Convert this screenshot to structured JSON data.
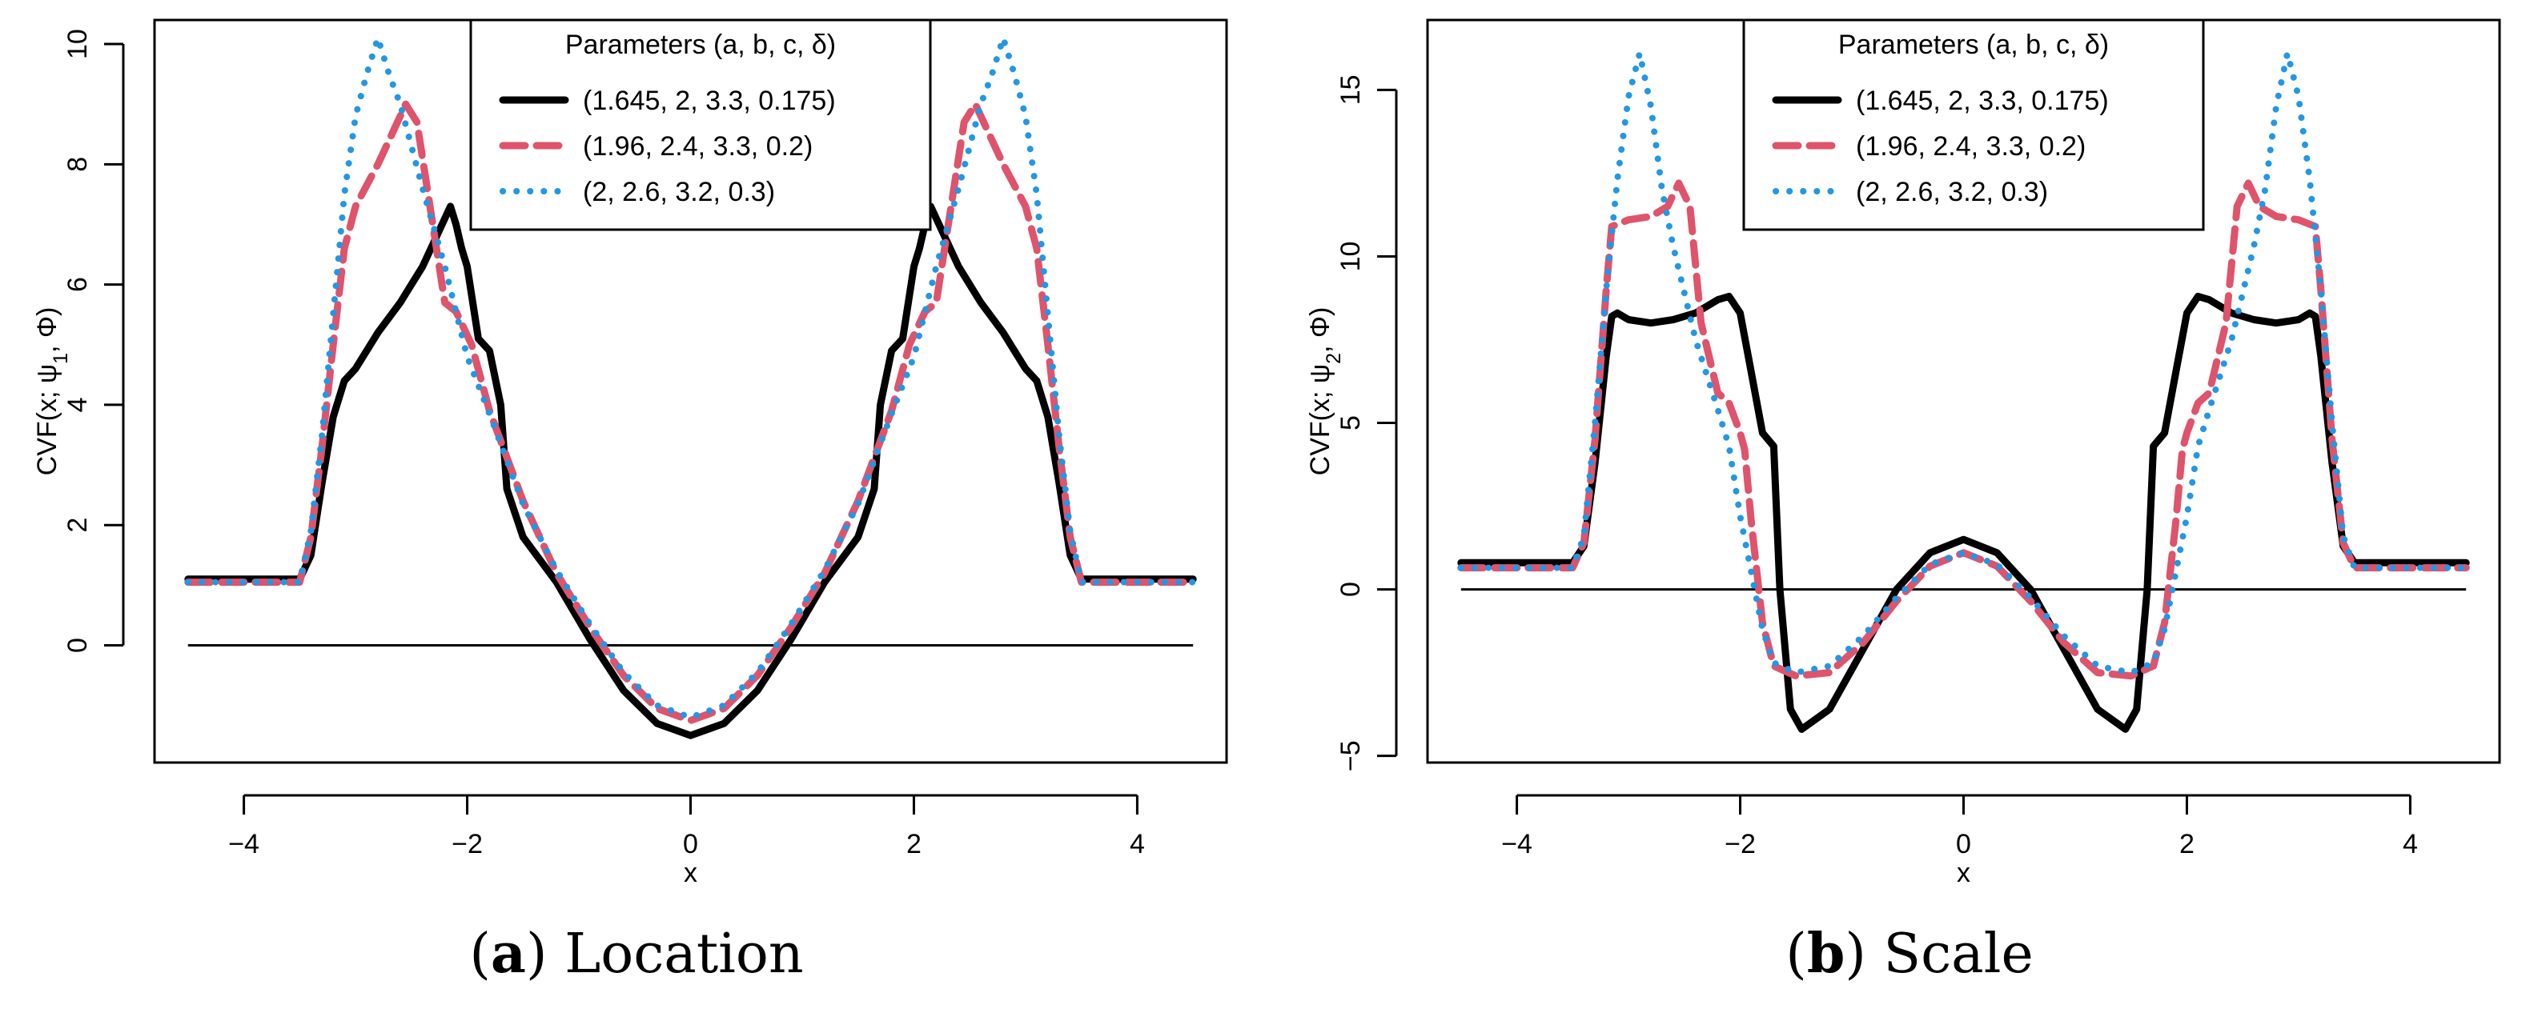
{
  "colors": {
    "black": "#000000",
    "red": "#DF536B",
    "blue": "#2297E6"
  },
  "chart_data": [
    {
      "type": "line",
      "panel_letter": "a",
      "caption_text": "Location",
      "xlabel": "x",
      "ylabel": "CVF(x; ψ1, Φ)",
      "ylabel_parts": {
        "pre": "CVF(x; ψ",
        "sub": "1",
        "post": ", Φ)"
      },
      "xlim": [
        -4.8,
        4.8
      ],
      "ylim": [
        -1.95,
        10.4
      ],
      "xticks": [
        -4,
        -2,
        0,
        2,
        4
      ],
      "xtick_labels": [
        "−4",
        "−2",
        "0",
        "2",
        "4"
      ],
      "yticks": [
        0,
        2,
        4,
        6,
        8,
        10
      ],
      "ytick_labels": [
        "0",
        "2",
        "4",
        "6",
        "8",
        "10"
      ],
      "legend": {
        "title": "Parameters (a, b, c, δ)",
        "placement": "top-center",
        "entries": [
          "(1.645, 2, 3.3, 0.175)",
          "(1.96, 2.4, 3.3, 0.2)",
          "(2, 2.6, 3.2, 0.3)"
        ]
      },
      "reference_line": 0,
      "series": [
        {
          "name": "(1.645, 2, 3.3, 0.175)",
          "color": "black",
          "style": "solid",
          "x": [
            0,
            0.3,
            0.6,
            0.9,
            1.2,
            1.5,
            1.645,
            1.7,
            1.8,
            1.9,
            2.0,
            2.05,
            2.1,
            2.15,
            2.2,
            2.4,
            2.6,
            2.8,
            3.0,
            3.1,
            3.2,
            3.3,
            3.4,
            3.5,
            4.5
          ],
          "y": [
            -1.5,
            -1.3,
            -0.75,
            0.1,
            1.05,
            1.8,
            2.6,
            4.0,
            4.9,
            5.1,
            6.3,
            6.6,
            7.0,
            7.3,
            7.1,
            6.3,
            5.7,
            5.2,
            4.6,
            4.4,
            3.8,
            2.7,
            1.5,
            1.1,
            1.1
          ]
        },
        {
          "name": "(1.96, 2.4, 3.3, 0.2)",
          "color": "red",
          "style": "dashed",
          "x": [
            0,
            0.3,
            0.6,
            0.9,
            1.2,
            1.5,
            1.8,
            1.96,
            2.1,
            2.2,
            2.3,
            2.45,
            2.55,
            2.65,
            2.8,
            3.0,
            3.1,
            3.2,
            3.3,
            3.4,
            3.5,
            4.5
          ],
          "y": [
            -1.25,
            -1.05,
            -0.5,
            0.3,
            1.2,
            2.4,
            3.9,
            5.0,
            5.55,
            5.7,
            6.9,
            8.7,
            9.0,
            8.6,
            8.0,
            7.3,
            6.6,
            5.0,
            3.3,
            1.8,
            1.05,
            1.05
          ]
        },
        {
          "name": "(2, 2.6, 3.2, 0.3)",
          "color": "blue",
          "style": "dotted",
          "x": [
            0,
            0.3,
            0.6,
            0.9,
            1.2,
            1.5,
            1.8,
            2.0,
            2.2,
            2.4,
            2.6,
            2.7,
            2.8,
            2.9,
            3.0,
            3.1,
            3.2,
            3.3,
            3.4,
            3.5,
            4.5
          ],
          "y": [
            -1.2,
            -1.0,
            -0.45,
            0.35,
            1.25,
            2.35,
            3.85,
            4.8,
            6.3,
            7.6,
            9.0,
            9.5,
            10.1,
            9.5,
            8.8,
            7.5,
            5.5,
            3.5,
            1.9,
            1.05,
            1.05
          ]
        }
      ]
    },
    {
      "type": "line",
      "panel_letter": "b",
      "caption_text": "Scale",
      "xlabel": "x",
      "ylabel": "CVF(x; ψ2, Φ)",
      "ylabel_parts": {
        "pre": "CVF(x; ψ",
        "sub": "2",
        "post": ", Φ)"
      },
      "xlim": [
        -4.8,
        4.8
      ],
      "ylim": [
        -5.2,
        17.1
      ],
      "xticks": [
        -4,
        -2,
        0,
        2,
        4
      ],
      "xtick_labels": [
        "−4",
        "−2",
        "0",
        "2",
        "4"
      ],
      "yticks": [
        -5,
        0,
        5,
        10,
        15
      ],
      "ytick_labels": [
        "−5",
        "0",
        "5",
        "10",
        "15"
      ],
      "legend": {
        "title": "Parameters (a, b, c, δ)",
        "placement": "top-center",
        "entries": [
          "(1.645, 2, 3.3, 0.175)",
          "(1.96, 2.4, 3.3, 0.2)",
          "(2, 2.6, 3.2, 0.3)"
        ]
      },
      "reference_line": 0,
      "series": [
        {
          "name": "(1.645, 2, 3.3, 0.175)",
          "color": "black",
          "style": "solid",
          "x": [
            0,
            0.3,
            0.6,
            0.9,
            1.2,
            1.45,
            1.55,
            1.645,
            1.7,
            1.8,
            1.9,
            2.0,
            2.1,
            2.2,
            2.4,
            2.6,
            2.8,
            3.0,
            3.1,
            3.15,
            3.2,
            3.3,
            3.4,
            3.5,
            4.5
          ],
          "y": [
            1.5,
            1.1,
            0,
            -1.8,
            -3.6,
            -4.2,
            -3.6,
            0,
            4.3,
            4.7,
            6.5,
            8.3,
            8.8,
            8.7,
            8.3,
            8.1,
            8.0,
            8.1,
            8.3,
            8.2,
            7.0,
            3.8,
            1.3,
            0.8,
            0.8
          ]
        },
        {
          "name": "(1.96, 2.4, 3.3, 0.2)",
          "color": "red",
          "style": "dashed",
          "x": [
            0,
            0.3,
            0.6,
            0.9,
            1.2,
            1.5,
            1.7,
            1.8,
            1.9,
            1.96,
            2.0,
            2.1,
            2.2,
            2.35,
            2.45,
            2.55,
            2.65,
            2.8,
            3.0,
            3.15,
            3.2,
            3.3,
            3.4,
            3.5,
            4.5
          ],
          "y": [
            1.1,
            0.7,
            -0.35,
            -1.6,
            -2.5,
            -2.6,
            -2.3,
            -1.0,
            2.0,
            4.2,
            4.7,
            5.6,
            5.9,
            8.0,
            11.5,
            12.2,
            11.5,
            11.2,
            11.1,
            10.9,
            9.0,
            4.5,
            1.4,
            0.65,
            0.65
          ]
        },
        {
          "name": "(2, 2.6, 3.2, 0.3)",
          "color": "blue",
          "style": "dotted",
          "x": [
            0,
            0.3,
            0.6,
            0.9,
            1.2,
            1.5,
            1.7,
            1.8,
            1.9,
            2.0,
            2.1,
            2.2,
            2.4,
            2.6,
            2.7,
            2.8,
            2.9,
            3.0,
            3.1,
            3.2,
            3.3,
            3.4,
            3.5,
            4.5
          ],
          "y": [
            1.1,
            0.75,
            -0.25,
            -1.4,
            -2.3,
            -2.5,
            -2.2,
            -1.2,
            0.5,
            2.2,
            4.3,
            5.4,
            7.5,
            10.3,
            12.0,
            14.5,
            16.1,
            14.8,
            12.3,
            9.0,
            5.0,
            1.6,
            0.65,
            0.65
          ]
        }
      ]
    }
  ]
}
